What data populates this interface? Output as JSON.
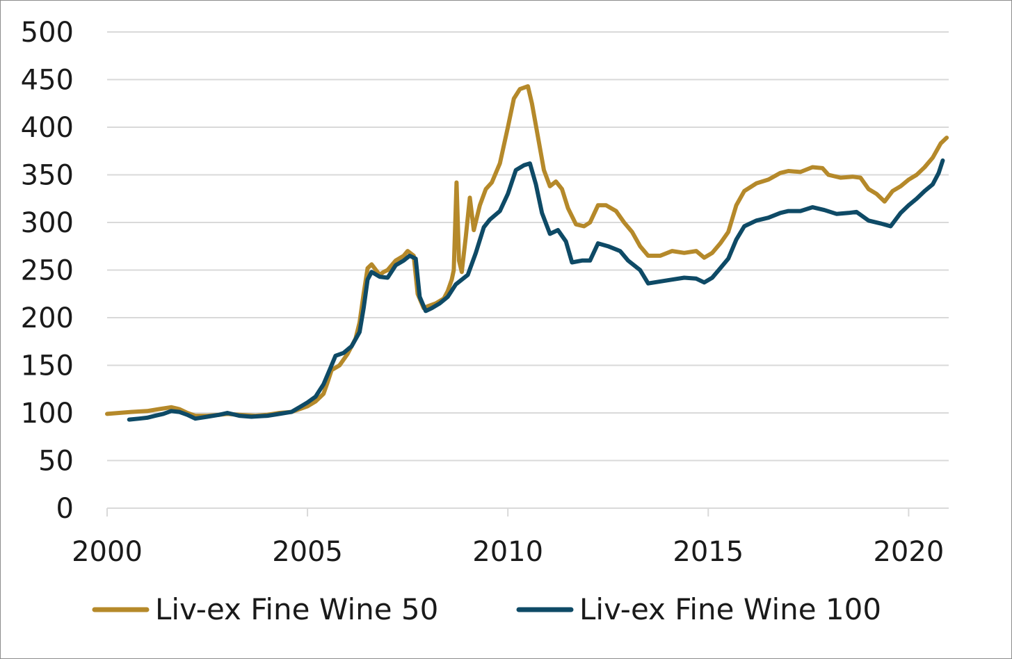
{
  "chart_data": {
    "type": "line",
    "title": "",
    "xlabel": "",
    "ylabel": "",
    "xlim": [
      2000,
      2021
    ],
    "ylim": [
      0,
      500
    ],
    "x_ticks": [
      "2000",
      "2005",
      "2010",
      "2015",
      "2020"
    ],
    "y_ticks": [
      "0",
      "50",
      "100",
      "150",
      "200",
      "250",
      "300",
      "350",
      "400",
      "450",
      "500"
    ],
    "grid": "horizontal",
    "legend": "bottom",
    "series": [
      {
        "name": "Liv-ex Fine Wine 50",
        "color": "#b5892a",
        "points": [
          [
            2000.0,
            99
          ],
          [
            2000.3,
            100
          ],
          [
            2000.6,
            101
          ],
          [
            2001.0,
            102
          ],
          [
            2001.3,
            104
          ],
          [
            2001.6,
            106
          ],
          [
            2001.8,
            104
          ],
          [
            2002.0,
            100
          ],
          [
            2002.2,
            97
          ],
          [
            2002.5,
            97
          ],
          [
            2002.8,
            98
          ],
          [
            2003.0,
            99
          ],
          [
            2003.3,
            98
          ],
          [
            2003.7,
            97
          ],
          [
            2004.0,
            98
          ],
          [
            2004.3,
            100
          ],
          [
            2004.6,
            101
          ],
          [
            2004.8,
            104
          ],
          [
            2005.0,
            107
          ],
          [
            2005.2,
            112
          ],
          [
            2005.4,
            120
          ],
          [
            2005.5,
            132
          ],
          [
            2005.6,
            145
          ],
          [
            2005.8,
            150
          ],
          [
            2006.0,
            162
          ],
          [
            2006.1,
            170
          ],
          [
            2006.2,
            178
          ],
          [
            2006.3,
            195
          ],
          [
            2006.4,
            225
          ],
          [
            2006.5,
            252
          ],
          [
            2006.6,
            256
          ],
          [
            2006.8,
            245
          ],
          [
            2006.9,
            248
          ],
          [
            2007.0,
            250
          ],
          [
            2007.2,
            260
          ],
          [
            2007.4,
            265
          ],
          [
            2007.5,
            270
          ],
          [
            2007.65,
            265
          ],
          [
            2007.75,
            225
          ],
          [
            2007.9,
            210
          ],
          [
            2008.0,
            212
          ],
          [
            2008.2,
            215
          ],
          [
            2008.4,
            220
          ],
          [
            2008.5,
            228
          ],
          [
            2008.6,
            240
          ],
          [
            2008.65,
            250
          ],
          [
            2008.72,
            342
          ],
          [
            2008.78,
            260
          ],
          [
            2008.85,
            248
          ],
          [
            2008.95,
            285
          ],
          [
            2009.05,
            326
          ],
          [
            2009.15,
            292
          ],
          [
            2009.3,
            318
          ],
          [
            2009.45,
            335
          ],
          [
            2009.6,
            342
          ],
          [
            2009.8,
            362
          ],
          [
            2010.0,
            400
          ],
          [
            2010.15,
            430
          ],
          [
            2010.3,
            440
          ],
          [
            2010.5,
            443
          ],
          [
            2010.6,
            425
          ],
          [
            2010.75,
            390
          ],
          [
            2010.9,
            355
          ],
          [
            2011.05,
            338
          ],
          [
            2011.2,
            343
          ],
          [
            2011.35,
            335
          ],
          [
            2011.5,
            315
          ],
          [
            2011.7,
            298
          ],
          [
            2011.9,
            296
          ],
          [
            2012.05,
            300
          ],
          [
            2012.25,
            318
          ],
          [
            2012.45,
            318
          ],
          [
            2012.7,
            312
          ],
          [
            2012.9,
            300
          ],
          [
            2013.1,
            290
          ],
          [
            2013.3,
            275
          ],
          [
            2013.5,
            265
          ],
          [
            2013.8,
            265
          ],
          [
            2014.1,
            270
          ],
          [
            2014.4,
            268
          ],
          [
            2014.7,
            270
          ],
          [
            2014.9,
            263
          ],
          [
            2015.1,
            268
          ],
          [
            2015.3,
            278
          ],
          [
            2015.5,
            290
          ],
          [
            2015.7,
            318
          ],
          [
            2015.9,
            333
          ],
          [
            2016.2,
            341
          ],
          [
            2016.5,
            345
          ],
          [
            2016.8,
            352
          ],
          [
            2017.0,
            354
          ],
          [
            2017.3,
            353
          ],
          [
            2017.6,
            358
          ],
          [
            2017.85,
            357
          ],
          [
            2018.0,
            350
          ],
          [
            2018.3,
            347
          ],
          [
            2018.6,
            348
          ],
          [
            2018.8,
            347
          ],
          [
            2019.0,
            335
          ],
          [
            2019.2,
            330
          ],
          [
            2019.4,
            322
          ],
          [
            2019.6,
            333
          ],
          [
            2019.8,
            338
          ],
          [
            2020.0,
            345
          ],
          [
            2020.2,
            350
          ],
          [
            2020.4,
            358
          ],
          [
            2020.6,
            368
          ],
          [
            2020.8,
            383
          ],
          [
            2020.95,
            389
          ]
        ]
      },
      {
        "name": "Liv-ex Fine Wine 100",
        "color": "#0e4a66",
        "points": [
          [
            2000.55,
            93
          ],
          [
            2000.8,
            94
          ],
          [
            2001.0,
            95
          ],
          [
            2001.2,
            97
          ],
          [
            2001.4,
            99
          ],
          [
            2001.6,
            102
          ],
          [
            2001.8,
            101
          ],
          [
            2002.0,
            98
          ],
          [
            2002.2,
            94
          ],
          [
            2002.5,
            96
          ],
          [
            2002.8,
            98
          ],
          [
            2003.0,
            100
          ],
          [
            2003.3,
            97
          ],
          [
            2003.6,
            96
          ],
          [
            2004.0,
            97
          ],
          [
            2004.3,
            99
          ],
          [
            2004.6,
            101
          ],
          [
            2004.8,
            106
          ],
          [
            2005.0,
            111
          ],
          [
            2005.2,
            117
          ],
          [
            2005.4,
            130
          ],
          [
            2005.55,
            145
          ],
          [
            2005.7,
            160
          ],
          [
            2005.9,
            163
          ],
          [
            2006.1,
            170
          ],
          [
            2006.3,
            185
          ],
          [
            2006.4,
            210
          ],
          [
            2006.5,
            240
          ],
          [
            2006.6,
            248
          ],
          [
            2006.8,
            243
          ],
          [
            2007.0,
            242
          ],
          [
            2007.2,
            255
          ],
          [
            2007.4,
            260
          ],
          [
            2007.55,
            265
          ],
          [
            2007.7,
            262
          ],
          [
            2007.8,
            222
          ],
          [
            2007.95,
            207
          ],
          [
            2008.1,
            210
          ],
          [
            2008.3,
            215
          ],
          [
            2008.5,
            222
          ],
          [
            2008.7,
            235
          ],
          [
            2009.0,
            245
          ],
          [
            2009.2,
            268
          ],
          [
            2009.4,
            295
          ],
          [
            2009.55,
            303
          ],
          [
            2009.8,
            312
          ],
          [
            2010.0,
            330
          ],
          [
            2010.2,
            355
          ],
          [
            2010.4,
            360
          ],
          [
            2010.55,
            362
          ],
          [
            2010.7,
            340
          ],
          [
            2010.85,
            310
          ],
          [
            2011.05,
            288
          ],
          [
            2011.25,
            292
          ],
          [
            2011.45,
            280
          ],
          [
            2011.6,
            258
          ],
          [
            2011.85,
            260
          ],
          [
            2012.05,
            260
          ],
          [
            2012.25,
            278
          ],
          [
            2012.5,
            275
          ],
          [
            2012.8,
            270
          ],
          [
            2013.0,
            260
          ],
          [
            2013.3,
            250
          ],
          [
            2013.5,
            236
          ],
          [
            2013.8,
            238
          ],
          [
            2014.1,
            240
          ],
          [
            2014.4,
            242
          ],
          [
            2014.7,
            241
          ],
          [
            2014.9,
            237
          ],
          [
            2015.1,
            242
          ],
          [
            2015.3,
            252
          ],
          [
            2015.5,
            262
          ],
          [
            2015.7,
            282
          ],
          [
            2015.9,
            296
          ],
          [
            2016.2,
            302
          ],
          [
            2016.5,
            305
          ],
          [
            2016.8,
            310
          ],
          [
            2017.0,
            312
          ],
          [
            2017.3,
            312
          ],
          [
            2017.6,
            316
          ],
          [
            2017.9,
            313
          ],
          [
            2018.2,
            309
          ],
          [
            2018.5,
            310
          ],
          [
            2018.7,
            311
          ],
          [
            2019.0,
            302
          ],
          [
            2019.3,
            299
          ],
          [
            2019.55,
            296
          ],
          [
            2019.8,
            310
          ],
          [
            2020.0,
            318
          ],
          [
            2020.2,
            325
          ],
          [
            2020.4,
            333
          ],
          [
            2020.6,
            340
          ],
          [
            2020.75,
            352
          ],
          [
            2020.85,
            365
          ]
        ]
      }
    ]
  }
}
